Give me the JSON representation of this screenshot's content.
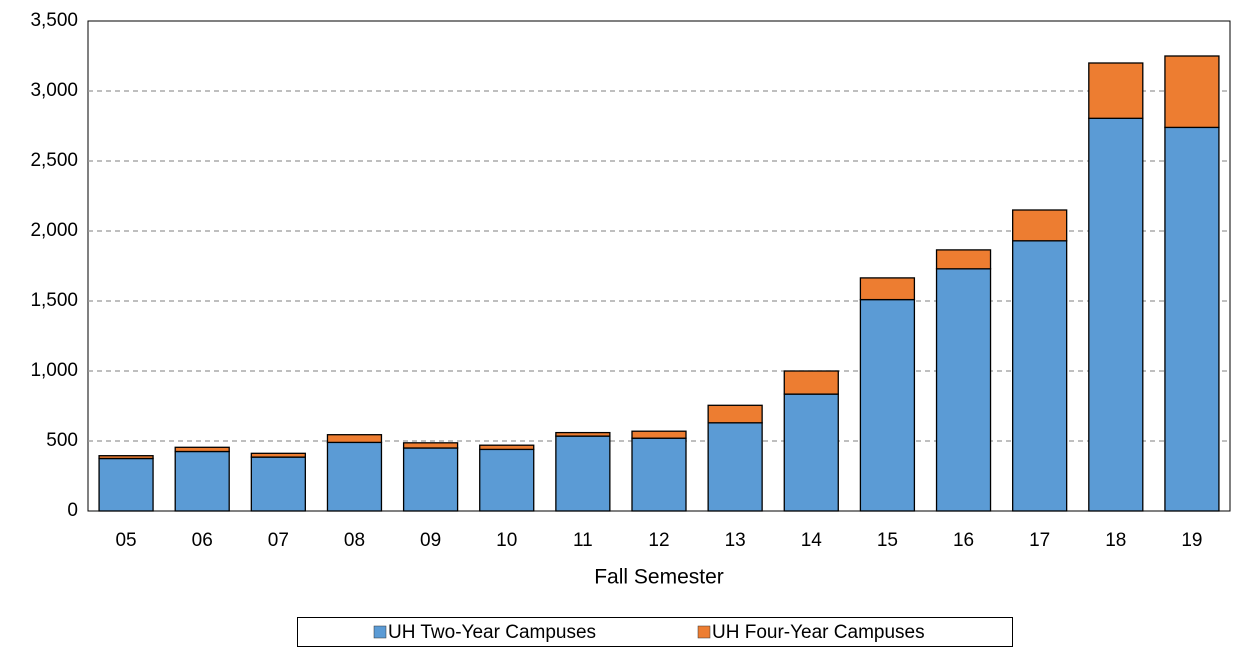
{
  "chart_data": {
    "type": "stacked_bar",
    "x_label": "Fall Semester",
    "categories": [
      "05",
      "06",
      "07",
      "08",
      "09",
      "10",
      "11",
      "12",
      "13",
      "14",
      "15",
      "16",
      "17",
      "18",
      "19"
    ],
    "series": [
      {
        "name": "UH Two-Year Campuses",
        "color": "#5b9bd5",
        "values": [
          375,
          425,
          385,
          490,
          450,
          440,
          535,
          520,
          630,
          835,
          1510,
          1730,
          1930,
          2805,
          2740
        ]
      },
      {
        "name": "UH Four-Year Campuses",
        "color": "#ed7d31",
        "values": [
          20,
          30,
          27,
          55,
          37,
          30,
          25,
          50,
          125,
          165,
          155,
          135,
          220,
          395,
          510
        ]
      }
    ],
    "ylim": [
      0,
      3500
    ],
    "yticks": [
      0,
      500,
      {
        "value": 1000,
        "label": "1,000"
      },
      {
        "value": 1500,
        "label": "1,500"
      },
      {
        "value": 2000,
        "label": "2,000"
      },
      {
        "value": 2500,
        "label": "2,500"
      },
      {
        "value": 3000,
        "label": "3,000"
      },
      {
        "value": 3500,
        "label": "3,500"
      }
    ],
    "grid": true,
    "legend": "bottom"
  }
}
